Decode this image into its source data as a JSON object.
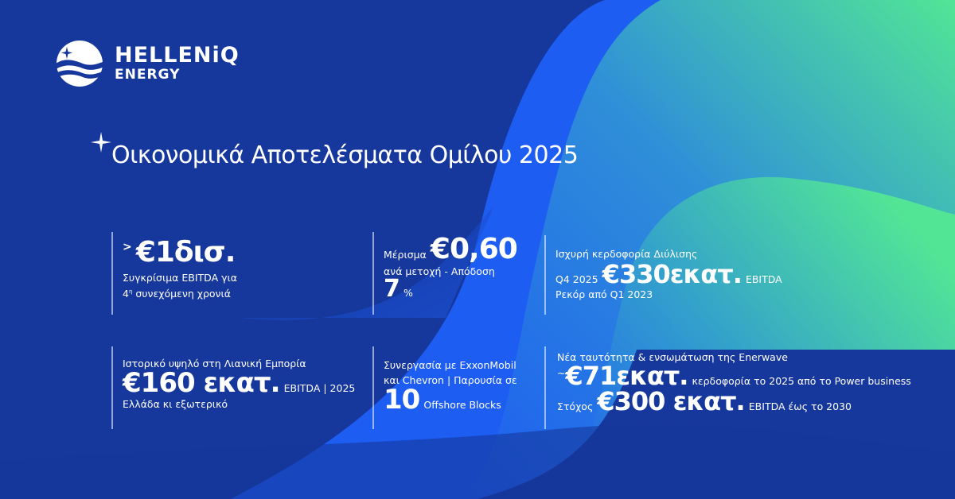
{
  "logo": {
    "line1": "HELLENiQ",
    "line2": "ENERGY"
  },
  "title": "Οικονομικά Αποτελέσματα Ομίλου 2025",
  "colors": {
    "background": "#16379b",
    "accent_blue": "#1d5df2",
    "accent_green": "#52e596"
  },
  "cells": [
    {
      "prefix": ">",
      "big": "€1δισ.",
      "line1": "Συγκρίσιμα EBITDA για",
      "line2_num": "4",
      "line2_sup": "η",
      "line2": "συνεχόμενη χρονιά"
    },
    {
      "label": "Μέρισμα",
      "big": "€0,60",
      "line1": "ανά μετοχή - Απόδοση",
      "big2": "7",
      "unit": "%"
    },
    {
      "line1": "Ισχυρή κερδοφορία Διύλισης",
      "prefix": "Q4 2025",
      "big": "€330εκατ.",
      "suffix": "EBITDA",
      "line2": "Ρεκόρ από Q1 2023"
    },
    {
      "line1": "Ιστορικό υψηλό στη Λιανική Εμπορία",
      "big": "€160 εκατ.",
      "suffix": "EBITDA | 2025",
      "line2": "Ελλάδα κι εξωτερικό"
    },
    {
      "line1": "Συνεργασία με ExxonMobil",
      "line2": "και Chevron | Παρουσία σε",
      "big": "10",
      "suffix": "Offshore Blocks"
    },
    {
      "line1": "Νέα ταυτότητα & ενσωμάτωση της Enerwave",
      "prefix": "~",
      "big": "€71εκατ.",
      "suffix": "κερδοφορία το 2025 από το Power business",
      "label2": "Στόχος",
      "big2": "€300 εκατ.",
      "suffix2": "EBITDA έως το 2030"
    }
  ]
}
